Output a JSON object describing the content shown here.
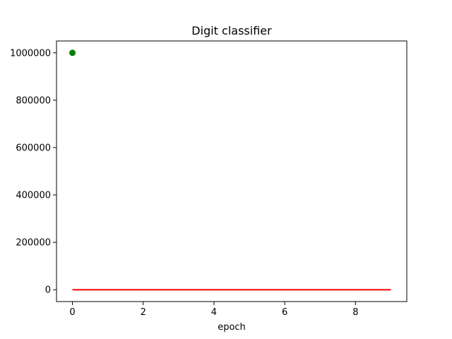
{
  "chart_data": {
    "type": "line",
    "title": "Digit classifier",
    "xlabel": "epoch",
    "ylabel": "",
    "xlim": [
      -0.45,
      9.45
    ],
    "ylim": [
      -50000,
      1050000
    ],
    "xticks": [
      0,
      2,
      4,
      6,
      8
    ],
    "yticks": [
      0,
      200000,
      400000,
      600000,
      800000,
      1000000
    ],
    "xtick_labels": [
      "0",
      "2",
      "4",
      "6",
      "8"
    ],
    "ytick_labels": [
      "0",
      "200000",
      "400000",
      "600000",
      "800000",
      "1000000"
    ],
    "grid": false,
    "series": [
      {
        "type": "line",
        "color": "#ff0000",
        "x": [
          0,
          1,
          2,
          3,
          4,
          5,
          6,
          7,
          8,
          9
        ],
        "y": [
          0,
          0,
          0,
          0,
          0,
          0,
          0,
          0,
          0,
          0
        ]
      },
      {
        "type": "scatter",
        "color": "#008000",
        "x": [
          0
        ],
        "y": [
          1000000
        ]
      }
    ]
  }
}
